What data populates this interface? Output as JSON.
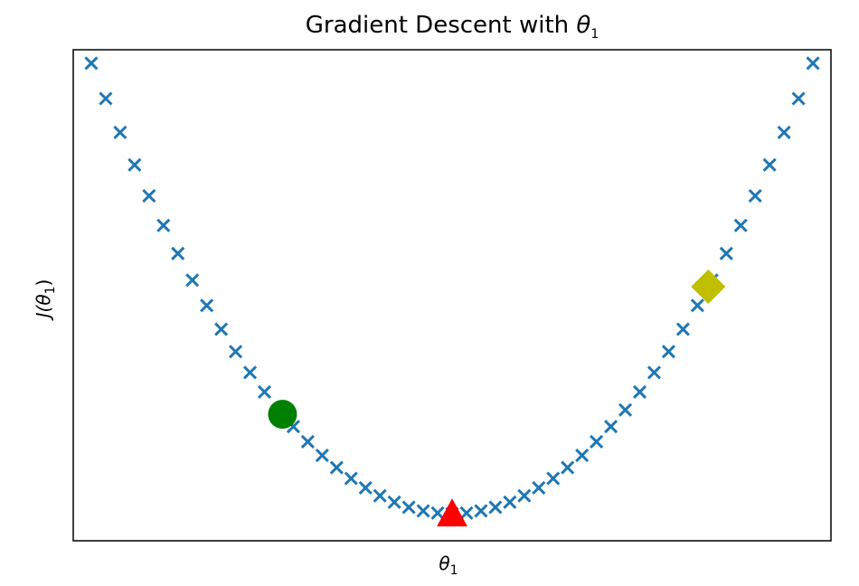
{
  "chart_data": {
    "type": "scatter",
    "title": {
      "text": "Gradient Descent with ",
      "symbol": "θ",
      "subscript": "1"
    },
    "xlabel": {
      "symbol": "θ",
      "subscript": "1"
    },
    "ylabel": {
      "prefix": "J(",
      "symbol": "θ",
      "subscript": "1",
      "suffix": ")"
    },
    "xlim": [
      -1.05,
      1.05
    ],
    "ylim": [
      -0.06,
      1.03
    ],
    "grid": false,
    "xticks": [],
    "yticks": [],
    "series": [
      {
        "marker": "x",
        "color": "#1f77b4",
        "x": [
          -1.0,
          -0.96,
          -0.92,
          -0.88,
          -0.84,
          -0.8,
          -0.76,
          -0.72,
          -0.68,
          -0.64,
          -0.6,
          -0.56,
          -0.52,
          -0.48,
          -0.44,
          -0.4,
          -0.36,
          -0.32,
          -0.28,
          -0.24,
          -0.2,
          -0.16,
          -0.12,
          -0.08,
          -0.04,
          0.0,
          0.04,
          0.08,
          0.12,
          0.16,
          0.2,
          0.24,
          0.28,
          0.32,
          0.36,
          0.4,
          0.44,
          0.48,
          0.52,
          0.56,
          0.6,
          0.64,
          0.68,
          0.72,
          0.76,
          0.8,
          0.84,
          0.88,
          0.92,
          0.96,
          1.0
        ],
        "y": [
          1.0,
          0.9216,
          0.8464,
          0.7744,
          0.7056,
          0.64,
          0.5776,
          0.5184,
          0.4624,
          0.4096,
          0.36,
          0.3136,
          0.2704,
          0.2304,
          0.1936,
          0.16,
          0.1296,
          0.1024,
          0.0784,
          0.0576,
          0.04,
          0.0256,
          0.0144,
          0.0064,
          0.0016,
          0.0,
          0.0016,
          0.0064,
          0.0144,
          0.0256,
          0.04,
          0.0576,
          0.0784,
          0.1024,
          0.1296,
          0.16,
          0.1936,
          0.2304,
          0.2704,
          0.3136,
          0.36,
          0.4096,
          0.4624,
          0.5184,
          0.5776,
          0.64,
          0.7056,
          0.7744,
          0.8464,
          0.9216,
          1.0
        ]
      }
    ],
    "highlights": [
      {
        "marker": "circle",
        "color": "#008000",
        "x": -0.47,
        "y": 0.2209
      },
      {
        "marker": "triangle",
        "color": "#ff0000",
        "x": 0.0,
        "y": 0.0
      },
      {
        "marker": "diamond",
        "color": "#bfbf00",
        "x": 0.71,
        "y": 0.5041
      }
    ]
  }
}
